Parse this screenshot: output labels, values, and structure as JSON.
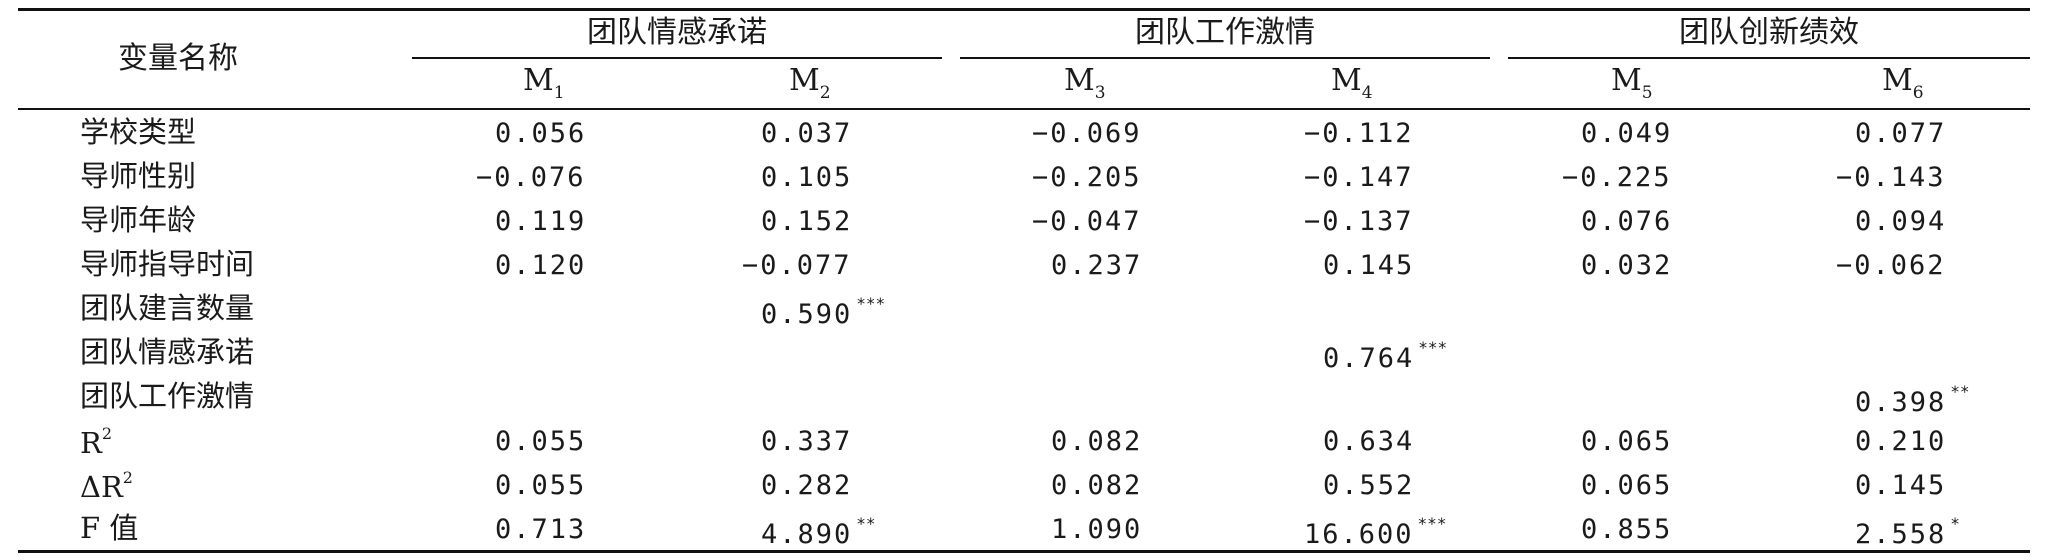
{
  "header": {
    "variable_col": "变量名称",
    "groups": [
      "团队情感承诺",
      "团队工作激情",
      "团队创新绩效"
    ],
    "models": [
      {
        "base": "M",
        "sub": "1"
      },
      {
        "base": "M",
        "sub": "2"
      },
      {
        "base": "M",
        "sub": "3"
      },
      {
        "base": "M",
        "sub": "4"
      },
      {
        "base": "M",
        "sub": "5"
      },
      {
        "base": "M",
        "sub": "6"
      }
    ]
  },
  "rows": [
    {
      "label": "学校类型",
      "values": [
        "0.056",
        "0.037",
        "−0.069",
        "−0.112",
        "0.049",
        "0.077"
      ],
      "stars": [
        "",
        "",
        "",
        "",
        "",
        ""
      ]
    },
    {
      "label": "导师性别",
      "values": [
        "−0.076",
        "0.105",
        "−0.205",
        "−0.147",
        "−0.225",
        "−0.143"
      ],
      "stars": [
        "",
        "",
        "",
        "",
        "",
        ""
      ]
    },
    {
      "label": "导师年龄",
      "values": [
        "0.119",
        "0.152",
        "−0.047",
        "−0.137",
        "0.076",
        "0.094"
      ],
      "stars": [
        "",
        "",
        "",
        "",
        "",
        ""
      ]
    },
    {
      "label": "导师指导时间",
      "values": [
        "0.120",
        "−0.077",
        "0.237",
        "0.145",
        "0.032",
        "−0.062"
      ],
      "stars": [
        "",
        "",
        "",
        "",
        "",
        ""
      ]
    },
    {
      "label": "团队建言数量",
      "values": [
        "",
        "0.590",
        "",
        "",
        "",
        ""
      ],
      "stars": [
        "",
        "***",
        "",
        "",
        "",
        ""
      ]
    },
    {
      "label": "团队情感承诺",
      "values": [
        "",
        "",
        "",
        "0.764",
        "",
        ""
      ],
      "stars": [
        "",
        "",
        "",
        "***",
        "",
        ""
      ]
    },
    {
      "label": "团队工作激情",
      "values": [
        "",
        "",
        "",
        "",
        "",
        "0.398"
      ],
      "stars": [
        "",
        "",
        "",
        "",
        "",
        "**"
      ]
    },
    {
      "label": "R",
      "label_sup": "2",
      "values": [
        "0.055",
        "0.337",
        "0.082",
        "0.634",
        "0.065",
        "0.210"
      ],
      "stars": [
        "",
        "",
        "",
        "",
        "",
        ""
      ]
    },
    {
      "label": "ΔR",
      "label_sup": "2",
      "values": [
        "0.055",
        "0.282",
        "0.082",
        "0.552",
        "0.065",
        "0.145"
      ],
      "stars": [
        "",
        "",
        "",
        "",
        "",
        ""
      ]
    },
    {
      "label": "F 值",
      "values": [
        "0.713",
        "4.890",
        "1.090",
        "16.600",
        "0.855",
        "2.558"
      ],
      "stars": [
        "",
        "**",
        "",
        "***",
        "",
        "*"
      ]
    }
  ]
}
